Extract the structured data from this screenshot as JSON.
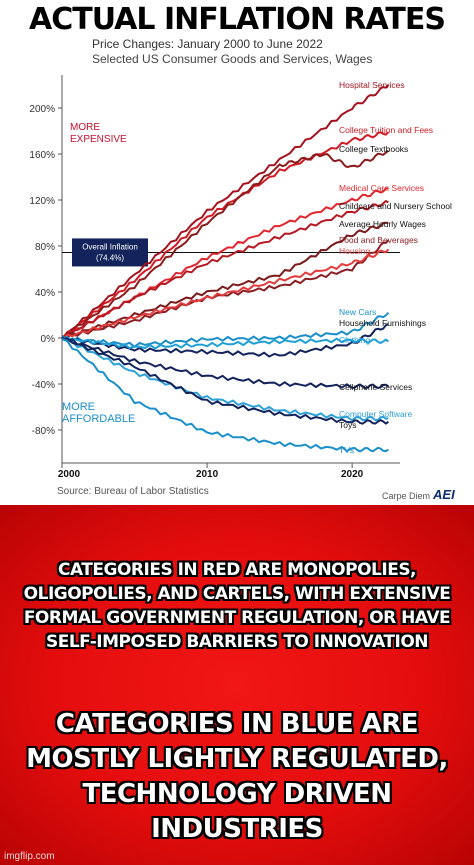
{
  "meme": {
    "top_text": "ACTUAL INFLATION RATES",
    "caption_1": "CATEGORIES IN RED ARE MONOPOLIES, OLIGOPOLIES, AND CARTELS, WITH EXTENSIVE FORMAL GOVERNMENT REGULATION, OR HAVE SELF-IMPOSED BARRIERS TO INNOVATION",
    "caption_2": "CATEGORIES IN BLUE ARE MOSTLY LIGHTLY REGULATED, TECHNOLOGY DRIVEN INDUSTRIES",
    "watermark": "imgflip.com"
  },
  "colors": {
    "red": "#c8102e",
    "dark_red": "#7a1016",
    "blue": "#1a8fc9",
    "navy": "#13235b",
    "background_red": "#e40d0d"
  },
  "chart_data": {
    "type": "line",
    "title": "Price Changes: January 2000 to June 2022",
    "subtitle": "Selected US Consumer Goods and Services, Wages",
    "source": "Source: Bureau of Labor Statistics",
    "brand": "Carpe Diem",
    "brand_logo": "AEI",
    "x_ticks": [
      "2000",
      "2010",
      "2020"
    ],
    "y_ticks": [
      "200%",
      "160%",
      "120%",
      "80%",
      "40%",
      "0%",
      "-40%",
      "-80%"
    ],
    "xlim": [
      2000,
      2023
    ],
    "ylim": [
      -100,
      225
    ],
    "annotations": {
      "more_expensive": "MORE EXPENSIVE",
      "more_affordable": "MORE AFFORDABLE"
    },
    "overall_inflation": {
      "label": "Overall Inflation",
      "value_label": "(74.4%)",
      "value": 74.4
    },
    "grid": false,
    "series": [
      {
        "name": "Hospital Services",
        "color": "#a3121d",
        "x": [
          2000,
          2005,
          2010,
          2015,
          2020,
          2022.5
        ],
        "y": [
          0,
          55,
          110,
          155,
          200,
          220
        ]
      },
      {
        "name": "College Tuition and Fees",
        "color": "#d21a24",
        "x": [
          2000,
          2005,
          2010,
          2015,
          2020,
          2022.5
        ],
        "y": [
          0,
          50,
          105,
          145,
          172,
          179
        ]
      },
      {
        "name": "College Textbooks",
        "color": "#8c1b1b",
        "x": [
          2000,
          2005,
          2010,
          2015,
          2018,
          2020,
          2022.5
        ],
        "y": [
          0,
          45,
          100,
          150,
          160,
          148,
          163
        ]
      },
      {
        "name": "Medical Care Services",
        "color": "#e0272f",
        "x": [
          2000,
          2005,
          2010,
          2015,
          2020,
          2022.5
        ],
        "y": [
          0,
          35,
          70,
          98,
          120,
          130
        ]
      },
      {
        "name": "Childcare and Nursery School",
        "color": "#b51822",
        "x": [
          2000,
          2005,
          2010,
          2015,
          2020,
          2022.5
        ],
        "y": [
          0,
          35,
          65,
          88,
          110,
          118
        ]
      },
      {
        "name": "Average Hourly Wages",
        "color": "#7a1a1a",
        "x": [
          2000,
          2005,
          2010,
          2015,
          2020,
          2022.5
        ],
        "y": [
          0,
          20,
          40,
          55,
          90,
          100
        ]
      },
      {
        "name": "Food and Beverages",
        "color": "#8a1e22",
        "x": [
          2000,
          2005,
          2010,
          2015,
          2020,
          2022.5
        ],
        "y": [
          0,
          15,
          35,
          45,
          60,
          85
        ]
      },
      {
        "name": "Housing",
        "color": "#e33b3b",
        "x": [
          2000,
          2005,
          2010,
          2015,
          2020,
          2022.5
        ],
        "y": [
          0,
          18,
          35,
          50,
          65,
          77
        ]
      },
      {
        "name": "New Cars",
        "color": "#1a8fc9",
        "x": [
          2000,
          2005,
          2010,
          2015,
          2020,
          2022.5
        ],
        "y": [
          0,
          -6,
          -1,
          0,
          5,
          22
        ]
      },
      {
        "name": "Household Furnishings",
        "color": "#13235b",
        "x": [
          2000,
          2005,
          2010,
          2015,
          2020,
          2022.5
        ],
        "y": [
          0,
          -10,
          -12,
          -15,
          -5,
          12
        ]
      },
      {
        "name": "Clothing",
        "color": "#1e9fd6",
        "x": [
          2000,
          2005,
          2010,
          2015,
          2020,
          2022.5
        ],
        "y": [
          0,
          -8,
          -6,
          -3,
          -2,
          -3
        ]
      },
      {
        "name": "Cellphone Services",
        "color": "#13235b",
        "x": [
          2000,
          2005,
          2010,
          2015,
          2020,
          2022.5
        ],
        "y": [
          0,
          -20,
          -33,
          -40,
          -42,
          -42
        ]
      },
      {
        "name": "Computer Software",
        "color": "#2da1d8",
        "x": [
          2000,
          2005,
          2010,
          2015,
          2020,
          2022.5
        ],
        "y": [
          0,
          -30,
          -52,
          -63,
          -70,
          -70
        ]
      },
      {
        "name": "Toys",
        "color": "#13235b",
        "x": [
          2000,
          2005,
          2010,
          2015,
          2020,
          2022.5
        ],
        "y": [
          0,
          -25,
          -55,
          -66,
          -73,
          -73
        ]
      },
      {
        "name": "TVs",
        "color": "#1a8fc9",
        "x": [
          2000,
          2005,
          2010,
          2015,
          2020,
          2022.5
        ],
        "y": [
          0,
          -55,
          -82,
          -92,
          -97,
          -97
        ]
      }
    ]
  }
}
